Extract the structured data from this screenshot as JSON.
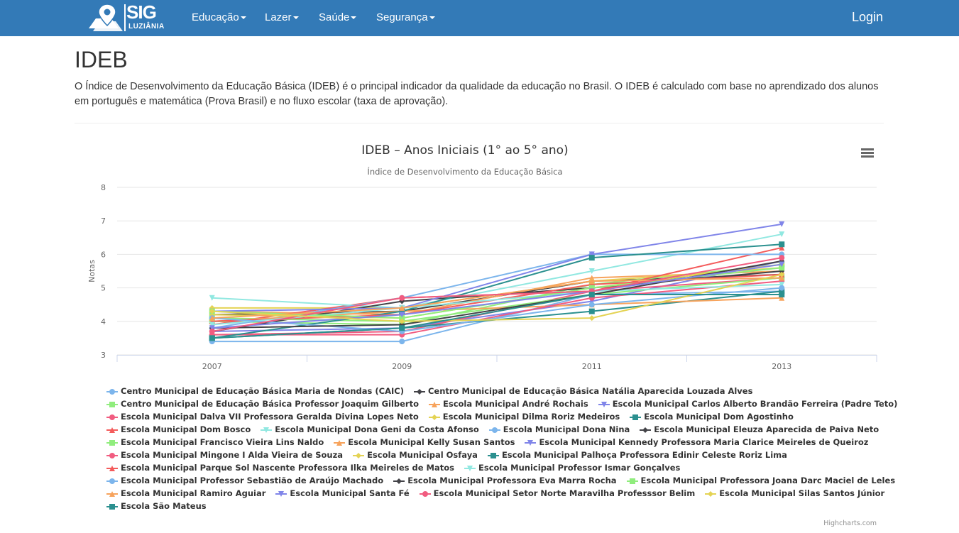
{
  "nav": {
    "logo_text": "SIG",
    "logo_sub": "LUZIÂNIA",
    "menu": [
      "Educação",
      "Lazer",
      "Saúde",
      "Segurança"
    ],
    "login": "Login"
  },
  "page": {
    "title": "IDEB",
    "description": "O Índice de Desenvolvimento da Educação Básica (IDEB) é o principal indicador da qualidade da educação no Brasil. O IDEB é calculado com base no aprendizado dos alunos em português e matemática (Prova Brasil) e no fluxo escolar (taxa de aprovação)."
  },
  "credits": "Highcharts.com",
  "colors": [
    "#7cb5ec",
    "#434348",
    "#90ed7d",
    "#f7a35c",
    "#8085e9",
    "#f15c80",
    "#e4d354",
    "#2b908f",
    "#f45b5b",
    "#91e8e1"
  ],
  "chart_data": {
    "type": "line",
    "title": "IDEB – Anos Iniciais (1° ao 5° ano)",
    "subtitle": "Índice de Desenvolvimento da Educação Básica",
    "ylabel": "Notas",
    "ylim": [
      3,
      8
    ],
    "yticks": [
      3,
      4,
      5,
      6,
      7,
      8
    ],
    "categories": [
      "2007",
      "2009",
      "2011",
      "2013"
    ],
    "grid": true,
    "legend_placement": "bottom",
    "series": [
      {
        "name": "Centro Municipal de Educação Básica Maria de Nondas (CAIC)",
        "values": [
          3.4,
          3.4,
          4.8,
          4.9
        ]
      },
      {
        "name": "Centro Municipal de Educação Básica Natália Aparecida Louzada Alves",
        "values": [
          4.2,
          4.3,
          5.2,
          5.4
        ]
      },
      {
        "name": "Centro Municipal de Educação Básica Professor Joaquim Gilberto",
        "values": [
          4.0,
          3.9,
          5.1,
          5.7
        ]
      },
      {
        "name": "Escola Municipal André Rochais",
        "values": [
          4.3,
          4.2,
          5.3,
          5.5
        ]
      },
      {
        "name": "Escola Municipal Carlos Alberto Brandão Ferreira (Padre Teto)",
        "values": [
          3.7,
          3.8,
          4.6,
          5.8
        ]
      },
      {
        "name": "Escola Municipal Dalva VII Professora Geralda Divina Lopes Neto",
        "values": [
          3.6,
          3.7,
          4.9,
          5.3
        ]
      },
      {
        "name": "Escola Municipal Dilma Roriz Medeiros",
        "values": [
          4.4,
          4.4,
          5.2,
          5.6
        ]
      },
      {
        "name": "Escola Municipal Dom Agostinho",
        "values": [
          3.5,
          3.8,
          4.3,
          4.9
        ]
      },
      {
        "name": "Escola Municipal Dom Bosco",
        "values": [
          3.9,
          4.7,
          4.9,
          6.2
        ]
      },
      {
        "name": "Escola Municipal Dona Geni da Costa Afonso",
        "values": [
          4.7,
          4.4,
          5.5,
          6.6
        ]
      },
      {
        "name": "Escola Municipal Dona Nina",
        "values": [
          3.8,
          4.7,
          6.0,
          6.0
        ]
      },
      {
        "name": "Escola Municipal Eleuza Aparecida de Paiva Neto",
        "values": [
          3.7,
          4.6,
          5.0,
          5.5
        ]
      },
      {
        "name": "Escola Municipal Francisco Vieira Lins Naldo",
        "values": [
          4.1,
          4.0,
          4.8,
          5.3
        ]
      },
      {
        "name": "Escola Municipal Kelly Susan Santos",
        "values": [
          4.0,
          4.3,
          4.5,
          4.7
        ]
      },
      {
        "name": "Escola Municipal Kennedy Professora Maria Clarice Meireles de Queiroz",
        "values": [
          4.3,
          4.4,
          6.0,
          6.9
        ]
      },
      {
        "name": "Escola Municipal Mingone I Alda Vieira de Souza",
        "values": [
          3.6,
          3.6,
          4.7,
          5.2
        ]
      },
      {
        "name": "Escola Municipal Osfaya",
        "values": [
          4.2,
          4.1,
          5.0,
          5.7
        ]
      },
      {
        "name": "Escola Municipal Palhoça Professora Edinir Celeste Roriz Lima",
        "values": [
          3.5,
          4.3,
          5.9,
          6.3
        ]
      },
      {
        "name": "Escola Municipal Parque Sol Nascente Professora Ilka Meireles de Matos",
        "values": [
          4.0,
          4.2,
          5.1,
          5.4
        ]
      },
      {
        "name": "Escola Municipal Professor Ismar Gonçalves",
        "values": [
          3.9,
          4.4,
          4.9,
          5.1
        ]
      },
      {
        "name": "Escola Municipal Professor Sebastião de Araújo Machado",
        "values": [
          4.1,
          3.7,
          4.5,
          5.0
        ]
      },
      {
        "name": "Escola Municipal Professora Eva Marra Rocha",
        "values": [
          3.8,
          3.9,
          4.8,
          5.8
        ]
      },
      {
        "name": "Escola Municipal Professora Joana Darc Maciel de Leles",
        "values": [
          4.3,
          4.1,
          5.0,
          5.6
        ]
      },
      {
        "name": "Escola Municipal Ramiro Aguiar",
        "values": [
          4.1,
          4.4,
          5.2,
          5.3
        ]
      },
      {
        "name": "Escola Municipal Santa Fé",
        "values": [
          3.8,
          4.2,
          4.9,
          5.7
        ]
      },
      {
        "name": "Escola Municipal Setor Norte Maravilha Professsor Belim",
        "values": [
          3.7,
          4.7,
          4.9,
          5.9
        ]
      },
      {
        "name": "Escola Municipal Silas Santos Júnior",
        "values": [
          4.3,
          4.0,
          4.1,
          5.4
        ]
      },
      {
        "name": "Escola São Mateus",
        "values": [
          3.5,
          3.8,
          4.8,
          4.8
        ]
      }
    ]
  }
}
